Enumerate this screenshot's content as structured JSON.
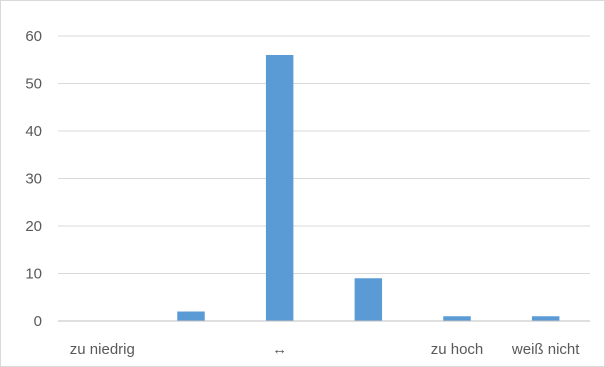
{
  "chart_data": {
    "type": "bar",
    "categories": [
      "zu niedrig",
      "",
      "↔",
      "",
      "zu hoch",
      "weiß nicht"
    ],
    "values": [
      0,
      2,
      56,
      9,
      1,
      1
    ],
    "ylim": [
      0,
      60
    ],
    "yticks": [
      0,
      10,
      20,
      30,
      40,
      50,
      60
    ],
    "grid": true,
    "legend": "none",
    "colors": {
      "bar": "#5b9bd5",
      "grid": "#d9d9d9",
      "axis": "#bfbfbf",
      "text": "#595959"
    }
  }
}
